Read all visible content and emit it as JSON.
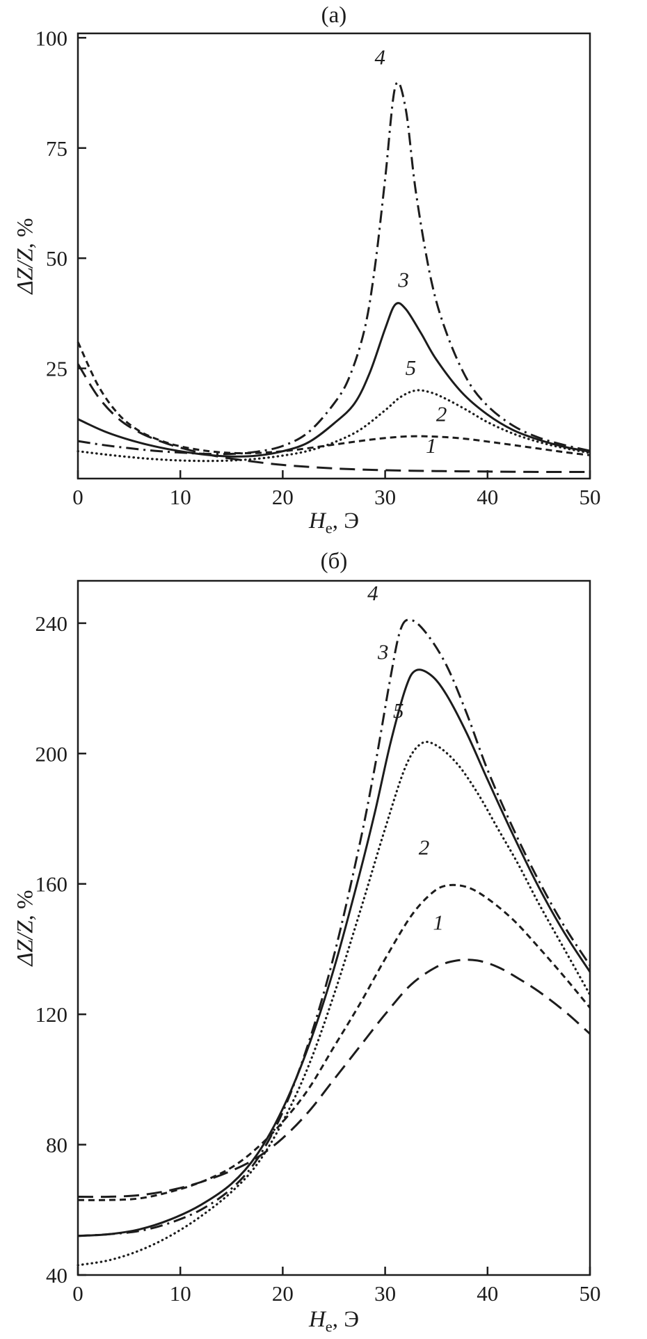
{
  "page": {
    "background": "#ffffff",
    "ink": "#1c1c1c"
  },
  "chart_data": [
    {
      "type": "line",
      "title": "(а)",
      "xlabel": {
        "main": "H",
        "sub": "e",
        "rest": ", Э"
      },
      "ylabel": {
        "main": "ΔZ/Z",
        "unit": ", %"
      },
      "xlim": [
        0,
        50
      ],
      "ylim": [
        0,
        101
      ],
      "xticks": [
        0,
        10,
        20,
        30,
        40,
        50
      ],
      "yticks": [
        25,
        50,
        75,
        100
      ],
      "grid": false,
      "legend": "inline-curve-numbers",
      "series": [
        {
          "name": "1",
          "style": "long-dash",
          "dash": "22 11",
          "label_at": [
            34.5,
            5.8
          ],
          "x": [
            0,
            2,
            4,
            6,
            8,
            10,
            13,
            16,
            20,
            25,
            30,
            35,
            40,
            45,
            50
          ],
          "y": [
            26,
            18.5,
            13.5,
            10.5,
            8.5,
            7,
            5.3,
            4.2,
            3.1,
            2.3,
            1.9,
            1.7,
            1.6,
            1.5,
            1.5
          ]
        },
        {
          "name": "2",
          "style": "short-dash",
          "dash": "9 6",
          "label_at": [
            35.5,
            13
          ],
          "x": [
            0,
            2,
            4,
            6,
            8,
            10,
            12.5,
            15,
            17.5,
            20,
            22.5,
            25,
            27.5,
            30,
            32.5,
            35,
            37.5,
            40,
            42.5,
            45,
            47.5,
            50
          ],
          "y": [
            31,
            21,
            14.5,
            10.8,
            8.7,
            7.3,
            6.3,
            5.8,
            5.8,
            6.2,
            6.9,
            7.7,
            8.5,
            9.2,
            9.6,
            9.5,
            9.1,
            8.4,
            7.6,
            6.8,
            6.0,
            5.3
          ]
        },
        {
          "name": "5",
          "style": "dotted",
          "dash": "0.5 6.2",
          "linecap": "round",
          "width": 3.2,
          "label_at": [
            32.5,
            23.5
          ],
          "x": [
            0,
            2.5,
            5,
            7.5,
            10,
            12.5,
            15,
            17.5,
            20,
            22.5,
            25,
            27.5,
            30,
            31.5,
            33,
            34.5,
            36,
            38,
            40,
            42.5,
            45,
            47.5,
            50
          ],
          "y": [
            6.2,
            5.5,
            4.9,
            4.4,
            4.1,
            4.0,
            4.1,
            4.5,
            5.2,
            6.3,
            8.2,
            11,
            15.5,
            18.5,
            20,
            19.5,
            18,
            15.5,
            12.8,
            10.2,
            8.3,
            6.9,
            5.8
          ]
        },
        {
          "name": "3",
          "style": "solid",
          "dash": "",
          "label_at": [
            31.8,
            43.5
          ],
          "x": [
            0,
            2.5,
            5,
            7.5,
            10,
            12.5,
            15,
            17.5,
            20,
            22.5,
            25,
            27,
            28.5,
            30,
            31,
            32,
            33.5,
            35,
            37.5,
            40,
            42.5,
            45,
            47.5,
            50
          ],
          "y": [
            13.5,
            10.8,
            8.8,
            7.3,
            6.2,
            5.4,
            5.0,
            5.2,
            6.2,
            8.2,
            12.5,
            17,
            24,
            34,
            39.5,
            38.5,
            33,
            27,
            19.5,
            14.5,
            11,
            8.8,
            7.2,
            6.1
          ]
        },
        {
          "name": "4",
          "style": "dash-dot",
          "dash": "18 7 3 7",
          "label_at": [
            29.5,
            94
          ],
          "x": [
            0,
            2.5,
            5,
            7.5,
            10,
            12.5,
            15,
            17.5,
            20,
            22.5,
            25,
            26.5,
            28,
            29,
            30,
            31,
            32,
            33,
            34.5,
            36,
            38,
            40,
            42.5,
            45,
            47.5,
            50
          ],
          "y": [
            8.5,
            7.6,
            6.9,
            6.3,
            5.9,
            5.6,
            5.6,
            6.1,
            7.4,
            10.5,
            17,
            23,
            34,
            48,
            68,
            89,
            84,
            65,
            45,
            33,
            22.5,
            16.5,
            12,
            9.3,
            7.6,
            6.3
          ]
        }
      ]
    },
    {
      "type": "line",
      "title": "(б)",
      "xlabel": {
        "main": "H",
        "sub": "e",
        "rest": ", Э"
      },
      "ylabel": {
        "main": "ΔZ/Z",
        "unit": ", %"
      },
      "xlim": [
        0,
        50
      ],
      "ylim": [
        40,
        253
      ],
      "xticks": [
        0,
        10,
        20,
        30,
        40,
        50
      ],
      "yticks": [
        40,
        80,
        120,
        160,
        200,
        240
      ],
      "grid": false,
      "legend": "inline-curve-numbers",
      "series": [
        {
          "name": "1",
          "style": "long-dash",
          "dash": "22 11",
          "label_at": [
            35.2,
            146
          ],
          "x": [
            0,
            3,
            6,
            9,
            12,
            15,
            17.5,
            20,
            22.5,
            25,
            27.5,
            30,
            32.5,
            35,
            37,
            39,
            41,
            43,
            45,
            47.5,
            50
          ],
          "y": [
            64,
            64,
            64.5,
            66,
            68.5,
            72,
            76,
            82,
            90,
            100,
            110,
            120,
            129,
            134.5,
            136.5,
            136.5,
            134.5,
            131,
            127,
            121,
            114
          ]
        },
        {
          "name": "2",
          "style": "short-dash",
          "dash": "9 6",
          "label_at": [
            33.8,
            169
          ],
          "x": [
            0,
            3,
            6,
            9,
            12,
            15,
            17.5,
            20,
            22.5,
            25,
            27.5,
            30,
            32.5,
            34.5,
            36,
            38,
            40,
            42.5,
            45,
            47.5,
            50
          ],
          "y": [
            63,
            63,
            63.5,
            65.5,
            68.5,
            73,
            79,
            87,
            97,
            110,
            123,
            137,
            150,
            157,
            159.5,
            159,
            155.5,
            149,
            140.5,
            131.5,
            122
          ]
        },
        {
          "name": "5",
          "style": "dotted",
          "dash": "0.5 6.2",
          "linecap": "round",
          "width": 3.2,
          "label_at": [
            31.3,
            211
          ],
          "x": [
            0,
            3,
            6,
            9,
            12,
            15,
            17.5,
            20,
            22.5,
            25,
            27.5,
            30,
            32,
            33.5,
            35,
            37,
            39,
            41,
            43,
            45,
            47.5,
            50
          ],
          "y": [
            43,
            44.5,
            47.5,
            52,
            58,
            65.5,
            74,
            87,
            104,
            126,
            151,
            177,
            196,
            203,
            202.5,
            197,
            188,
            177,
            166,
            154,
            140,
            126
          ]
        },
        {
          "name": "3",
          "style": "solid",
          "dash": "",
          "label_at": [
            29.8,
            229
          ],
          "x": [
            0,
            3,
            6,
            9,
            12,
            15,
            17.5,
            20,
            22.5,
            25,
            27.5,
            29,
            30.5,
            32,
            33,
            34.5,
            36,
            38,
            40,
            42.5,
            45,
            47.5,
            50
          ],
          "y": [
            52,
            52.5,
            54,
            57,
            61.5,
            68,
            77,
            91,
            110,
            134,
            163,
            182,
            203,
            220,
            225.5,
            224,
            218,
            206,
            192,
            175,
            159,
            145,
            133
          ]
        },
        {
          "name": "4",
          "style": "dash-dot",
          "dash": "18 7 3 7",
          "label_at": [
            28.8,
            247
          ],
          "x": [
            0,
            3,
            6,
            9,
            12,
            15,
            17.5,
            20,
            22.5,
            25,
            27.5,
            29,
            30.5,
            31.5,
            32.5,
            34,
            36,
            38,
            40,
            42.5,
            45,
            47.5,
            50
          ],
          "y": [
            52,
            52.5,
            53.5,
            56,
            60,
            66.5,
            75.5,
            90,
            111,
            138,
            172,
            196,
            223,
            238,
            241,
            237,
            227,
            212,
            195,
            177,
            161,
            147,
            135
          ]
        }
      ]
    }
  ]
}
